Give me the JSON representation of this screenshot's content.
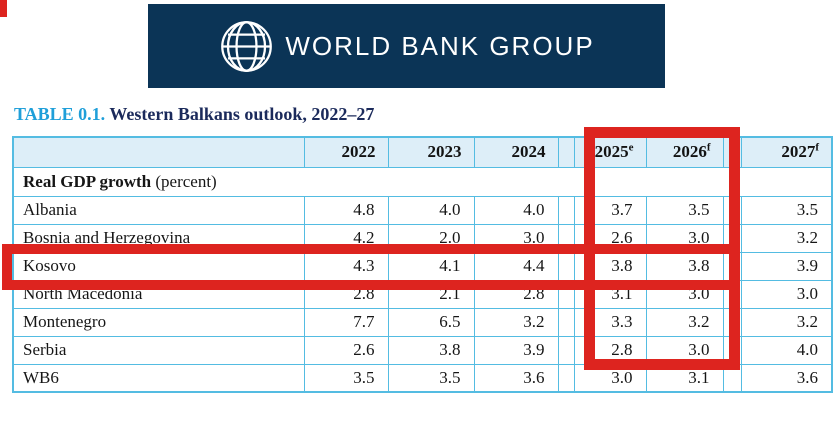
{
  "banner": {
    "logo_text": "WORLD BANK GROUP",
    "logo_icon": "globe-icon"
  },
  "title": {
    "label": "TABLE 0.1.",
    "text": " Western Balkans outlook, 2022–27"
  },
  "table": {
    "section_bold": "Real GDP growth",
    "section_note": " (percent)",
    "years": [
      {
        "label": "2022",
        "sup": ""
      },
      {
        "label": "2023",
        "sup": ""
      },
      {
        "label": "2024",
        "sup": ""
      },
      {
        "label": "2025",
        "sup": "e"
      },
      {
        "label": "2026",
        "sup": "f"
      },
      {
        "label": "2027",
        "sup": "f"
      }
    ],
    "rows": [
      {
        "name": "Albania",
        "values": [
          "4.8",
          "4.0",
          "4.0",
          "3.7",
          "3.5",
          "3.5"
        ],
        "highlighted": false
      },
      {
        "name": "Bosnia and Herzegovina",
        "values": [
          "4.2",
          "2.0",
          "3.0",
          "2.6",
          "3.0",
          "3.2"
        ],
        "highlighted": false
      },
      {
        "name": "Kosovo",
        "values": [
          "4.3",
          "4.1",
          "4.4",
          "3.8",
          "3.8",
          "3.9"
        ],
        "highlighted": true
      },
      {
        "name": "North Macedonia",
        "values": [
          "2.8",
          "2.1",
          "2.8",
          "3.1",
          "3.0",
          "3.0"
        ],
        "highlighted": false
      },
      {
        "name": "Montenegro",
        "values": [
          "7.7",
          "6.5",
          "3.2",
          "3.3",
          "3.2",
          "3.2"
        ],
        "highlighted": false
      },
      {
        "name": "Serbia",
        "values": [
          "2.6",
          "3.8",
          "3.9",
          "2.8",
          "3.0",
          "4.0"
        ],
        "highlighted": false
      },
      {
        "name": "WB6",
        "values": [
          "3.5",
          "3.5",
          "3.6",
          "3.0",
          "3.1",
          "3.6"
        ],
        "highlighted": false
      }
    ],
    "highlighted_columns": [
      "2025",
      "2026"
    ],
    "highlighted_row": "Kosovo"
  },
  "colors": {
    "banner_bg": "#0b3456",
    "accent_blue": "#1f9fd9",
    "title_navy": "#1b2a5b",
    "table_border": "#54bce2",
    "header_fill": "#ddeef8",
    "highlight_red": "#dd241f"
  }
}
